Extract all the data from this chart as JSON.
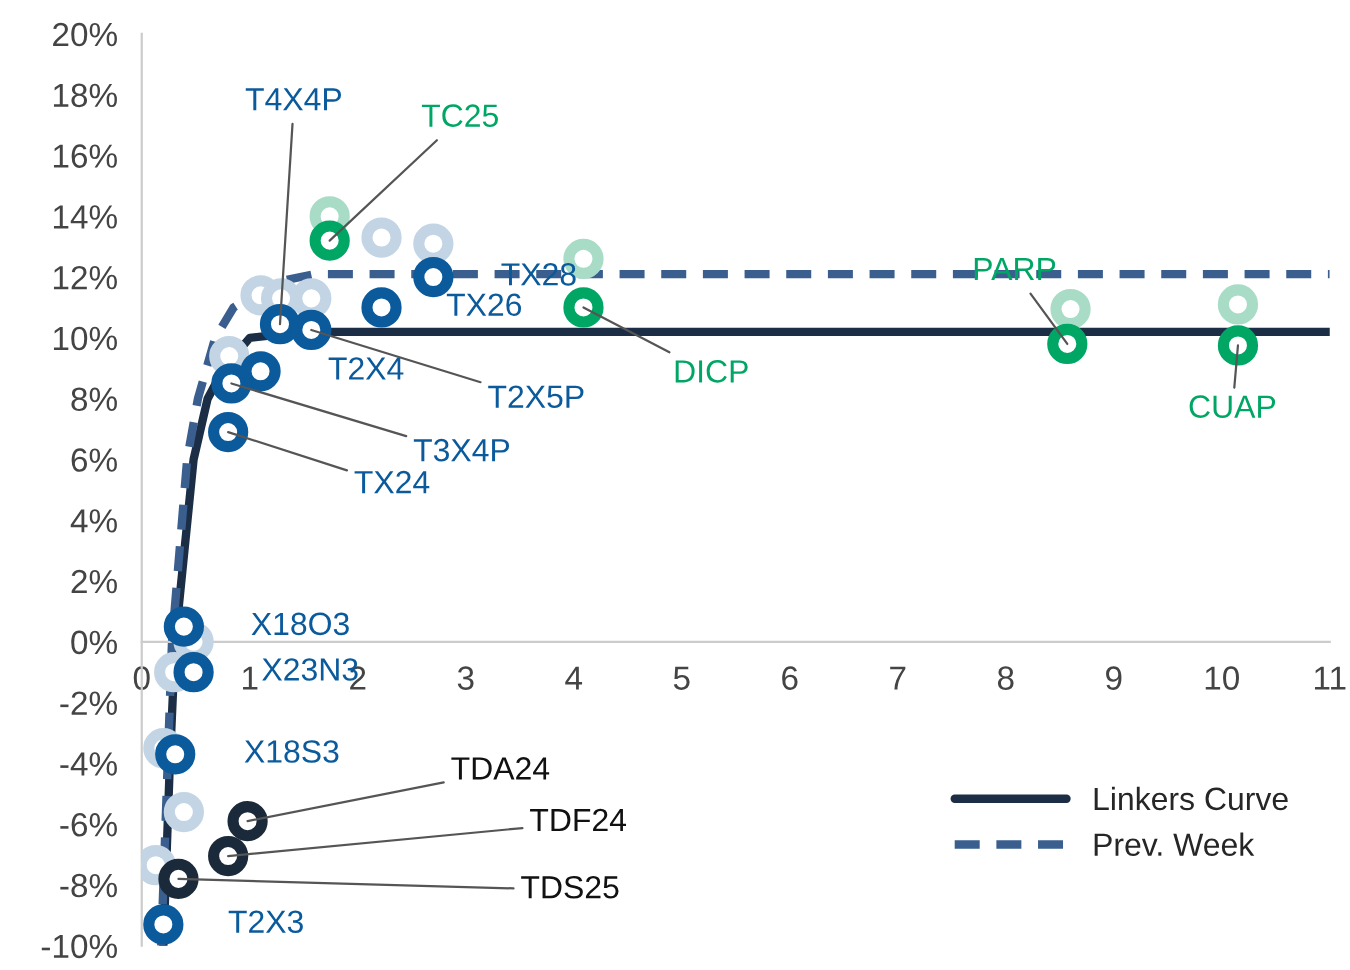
{
  "chart_data": {
    "type": "scatter",
    "xlim": [
      0,
      11
    ],
    "xticks": [
      0,
      1,
      2,
      3,
      4,
      5,
      6,
      7,
      8,
      9,
      10,
      11
    ],
    "ylim": [
      -10,
      20
    ],
    "yticks": [
      {
        "value": -10,
        "label": "-10%"
      },
      {
        "value": -8,
        "label": "-8%"
      },
      {
        "value": -6,
        "label": "-6%"
      },
      {
        "value": -4,
        "label": "-4%"
      },
      {
        "value": -2,
        "label": "-2%"
      },
      {
        "value": 0,
        "label": "0%"
      },
      {
        "value": 2,
        "label": "2%"
      },
      {
        "value": 4,
        "label": "4%"
      },
      {
        "value": 6,
        "label": "6%"
      },
      {
        "value": 8,
        "label": "8%"
      },
      {
        "value": 10,
        "label": "10%"
      },
      {
        "value": 12,
        "label": "12%"
      },
      {
        "value": 14,
        "label": "14%"
      },
      {
        "value": 16,
        "label": "16%"
      },
      {
        "value": 18,
        "label": "18%"
      },
      {
        "value": 20,
        "label": "20%"
      }
    ],
    "grid": false,
    "legend": "bottom right",
    "series": [
      {
        "marker": "circle",
        "color": "#c3d5e4",
        "x": [
          0.48,
          0.3,
          0.2,
          0.39,
          0.13,
          0.81,
          1.1,
          1.29,
          1.57,
          2.22,
          2.7
        ],
        "values": [
          0.0,
          -1.0,
          -3.5,
          -5.6,
          -7.35,
          9.4,
          11.4,
          11.3,
          11.3,
          13.3,
          13.1
        ]
      },
      {
        "marker": "circle",
        "color": "#a8dcc6",
        "x": [
          1.74,
          4.09,
          8.6,
          10.15
        ],
        "values": [
          14.0,
          12.6,
          10.95,
          11.1
        ]
      },
      {
        "type": "line",
        "name": "Linkers Curve",
        "color": "#1c2e45",
        "line_style": "solid",
        "x": [
          0.2,
          0.26,
          0.31,
          0.48,
          0.61,
          0.76,
          1.0,
          1.5,
          11
        ],
        "values": [
          -10,
          -4,
          0,
          6,
          8,
          9,
          10,
          10.2,
          10.2
        ]
      },
      {
        "type": "line",
        "name": "Prev. Week",
        "color": "#3a5f8f",
        "line_style": "dashed",
        "x": [
          0.18,
          0.28,
          0.42,
          0.52,
          0.68,
          0.85,
          1.2,
          1.6,
          11
        ],
        "values": [
          -10,
          0,
          6,
          8,
          10,
          11,
          11.8,
          12.1,
          12.1
        ]
      },
      {
        "marker": "circle",
        "color": "#0a5a9c",
        "x": [
          1.28,
          2.7,
          2.22,
          1.1,
          1.57,
          0.83,
          0.8,
          0.39,
          0.48,
          0.31,
          0.2
        ],
        "values": [
          10.45,
          12.0,
          11.0,
          8.9,
          10.26,
          8.5,
          6.9,
          0.5,
          -1.0,
          -3.7,
          -9.3
        ]
      },
      {
        "marker": "circle",
        "color": "#00a664",
        "x": [
          1.74,
          4.09,
          8.57,
          10.15
        ],
        "values": [
          13.2,
          11.0,
          9.8,
          9.75
        ]
      },
      {
        "marker": "circle",
        "color": "#1b2a3a",
        "x": [
          0.98,
          0.8,
          0.34
        ],
        "values": [
          -5.9,
          -7.05,
          -7.8
        ]
      }
    ],
    "annotations": [
      {
        "text": "T4X4P",
        "x": 1.28,
        "y": 10.45
      },
      {
        "text": "TC25",
        "x": 1.74,
        "y": 13.2
      },
      {
        "text": "TX28",
        "x": 2.7,
        "y": 12.0
      },
      {
        "text": "TX26",
        "x": 2.22,
        "y": 11.0
      },
      {
        "text": "T2X4",
        "x": 1.1,
        "y": 8.9
      },
      {
        "text": "T2X5P",
        "x": 1.57,
        "y": 10.26
      },
      {
        "text": "T3X4P",
        "x": 0.83,
        "y": 8.5
      },
      {
        "text": "TX24",
        "x": 0.8,
        "y": 6.9
      },
      {
        "text": "DICP",
        "x": 4.09,
        "y": 11.0
      },
      {
        "text": "PARP",
        "x": 8.57,
        "y": 9.8
      },
      {
        "text": "CUAP",
        "x": 10.15,
        "y": 9.75
      },
      {
        "text": "X18O3",
        "x": 0.39,
        "y": 0.5
      },
      {
        "text": "X23N3",
        "x": 0.48,
        "y": -1.0
      },
      {
        "text": "X18S3",
        "x": 0.31,
        "y": -3.7
      },
      {
        "text": "T2X3",
        "x": 0.2,
        "y": -9.3
      },
      {
        "text": "TDA24",
        "x": 0.98,
        "y": -5.9
      },
      {
        "text": "TDF24",
        "x": 0.8,
        "y": -7.05
      },
      {
        "text": "TDS25",
        "x": 0.34,
        "y": -7.8
      }
    ]
  }
}
